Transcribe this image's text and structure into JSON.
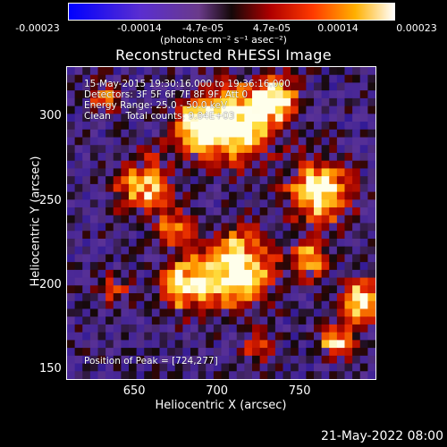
{
  "colorbar": {
    "tick_labels": [
      "-0.00023",
      "-0.00014",
      "-4.7e-05",
      "4.7e-05",
      "0.00014",
      "0.00023"
    ],
    "units_text": "(photons cm⁻² s⁻¹ asec⁻²)",
    "range": [
      -0.00023,
      0.00023
    ]
  },
  "title": "Reconstructed RHESSI Image",
  "info": {
    "line1": "15-May-2015 19:30:16.000 to 19:36:16.000",
    "line2": "Detectors: 3F 5F 6F 7F 8F 9F, Att 0",
    "line3": "Energy Range: 25.0 - 50.0 keV",
    "line4": "Clean     Total counts: 9.84E+03",
    "peak": "Position of Peak = [724,277]"
  },
  "chart_data": {
    "type": "heatmap",
    "title": "Reconstructed RHESSI Image",
    "xlabel": "Heliocentric X (arcsec)",
    "ylabel": "Heliocentric Y (arcsec)",
    "xlim": [
      608,
      795
    ],
    "ylim": [
      144,
      330
    ],
    "x_ticks": [
      650,
      700,
      750
    ],
    "y_ticks": [
      150,
      200,
      250,
      300
    ],
    "peak_position": [
      724,
      277
    ],
    "colormap": "blue-purple-red-yellow-white",
    "color_range": [
      -0.00023,
      0.00023
    ]
  },
  "footer": "21-May-2022 08:00"
}
